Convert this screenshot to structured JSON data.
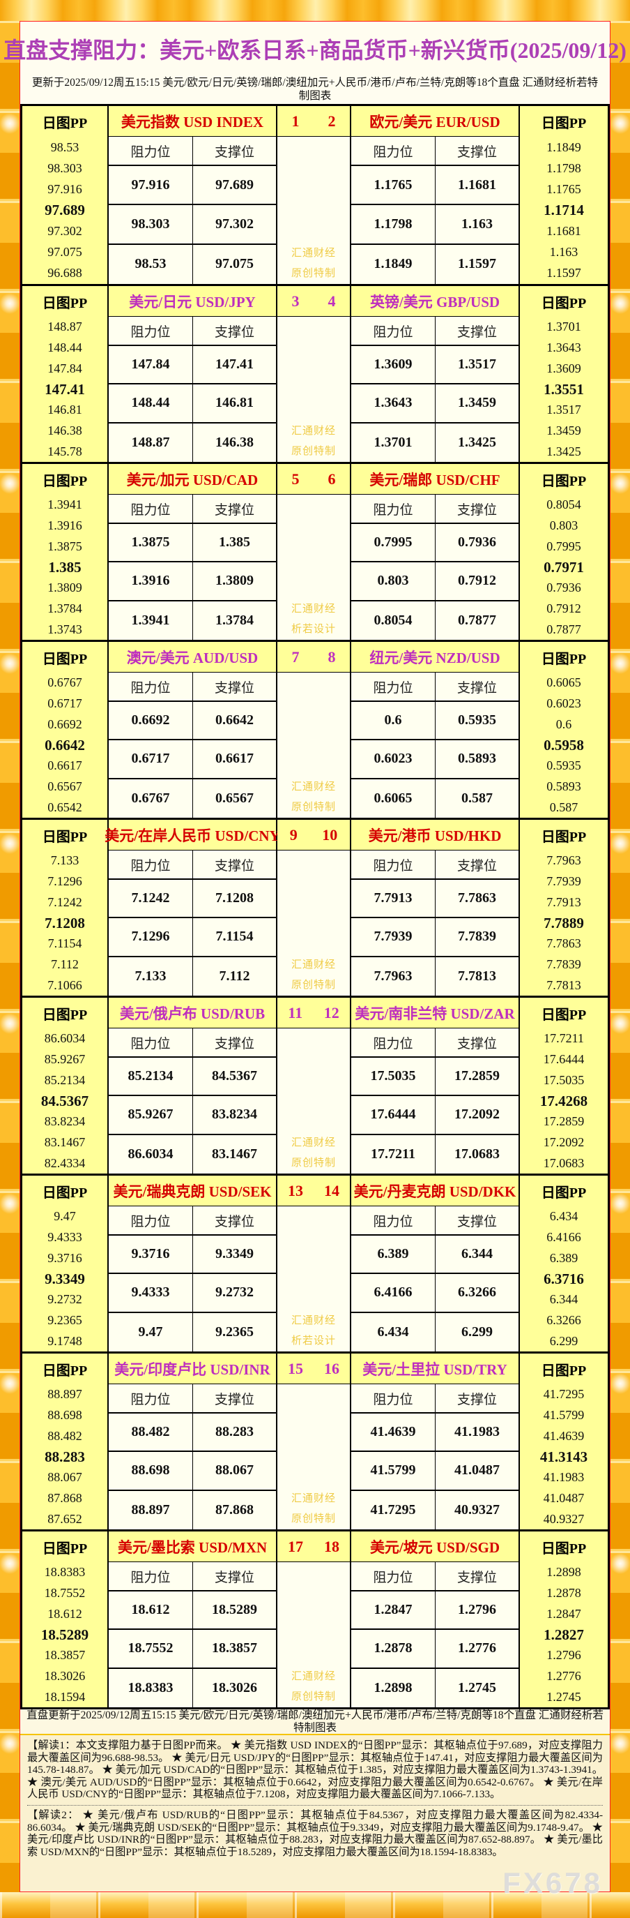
{
  "chart_data": {
    "type": "table",
    "title": "直盘支撑阻力：美元+欧系日系+商品货币+新兴货币(2025/09/12)",
    "subtitle": "更新于2025/09/12周五15:15 美元/欧元/日元/英镑/瑞郎/澳纽加元+人民币/港币/卢布/兰特/克朗等18个直盘 汇通财经析若特制图表",
    "footer_text": "直盘更新于2025/09/12周五15:15 美元/欧元/日元/英镑/瑞郎/澳纽加元+人民币/港币/卢布/兰特/克朗等18个直盘 汇通财经析若特制图表",
    "watermark": "FX678",
    "labels": {
      "pp_header": "日图PP",
      "resistance": "阻力位",
      "support": "支撑位"
    },
    "colors": {
      "red": "#D50000",
      "purple": "#BE2EBE",
      "header_bg": "#FFFF99",
      "cell_bg": "#FFFFF0",
      "gold_wm": "#EFCB45"
    },
    "blocks": [
      {
        "index_left": "1",
        "index_right": "2",
        "accent": "red",
        "watermark": [
          "汇通财经",
          "原创特制"
        ],
        "left": {
          "name": "美元指数 USD INDEX",
          "pp_values": [
            "98.53",
            "98.303",
            "97.916",
            "97.689",
            "97.302",
            "97.075",
            "96.688"
          ],
          "rows": [
            [
              "97.916",
              "97.689"
            ],
            [
              "98.303",
              "97.302"
            ],
            [
              "98.53",
              "97.075"
            ]
          ]
        },
        "right": {
          "name": "欧元/美元 EUR/USD",
          "pp_values": [
            "1.1849",
            "1.1798",
            "1.1765",
            "1.1714",
            "1.1681",
            "1.163",
            "1.1597"
          ],
          "rows": [
            [
              "1.1765",
              "1.1681"
            ],
            [
              "1.1798",
              "1.163"
            ],
            [
              "1.1849",
              "1.1597"
            ]
          ]
        }
      },
      {
        "index_left": "3",
        "index_right": "4",
        "accent": "purple",
        "watermark": [
          "汇通财经",
          "原创特制"
        ],
        "left": {
          "name": "美元/日元 USD/JPY",
          "pp_values": [
            "148.87",
            "148.44",
            "147.84",
            "147.41",
            "146.81",
            "146.38",
            "145.78"
          ],
          "rows": [
            [
              "147.84",
              "147.41"
            ],
            [
              "148.44",
              "146.81"
            ],
            [
              "148.87",
              "146.38"
            ]
          ]
        },
        "right": {
          "name": "英镑/美元 GBP/USD",
          "pp_values": [
            "1.3701",
            "1.3643",
            "1.3609",
            "1.3551",
            "1.3517",
            "1.3459",
            "1.3425"
          ],
          "rows": [
            [
              "1.3609",
              "1.3517"
            ],
            [
              "1.3643",
              "1.3459"
            ],
            [
              "1.3701",
              "1.3425"
            ]
          ]
        }
      },
      {
        "index_left": "5",
        "index_right": "6",
        "accent": "red",
        "watermark": [
          "汇通财经",
          "析若设计"
        ],
        "left": {
          "name": "美元/加元 USD/CAD",
          "pp_values": [
            "1.3941",
            "1.3916",
            "1.3875",
            "1.385",
            "1.3809",
            "1.3784",
            "1.3743"
          ],
          "rows": [
            [
              "1.3875",
              "1.385"
            ],
            [
              "1.3916",
              "1.3809"
            ],
            [
              "1.3941",
              "1.3784"
            ]
          ]
        },
        "right": {
          "name": "美元/瑞郎 USD/CHF",
          "pp_values": [
            "0.8054",
            "0.803",
            "0.7995",
            "0.7971",
            "0.7936",
            "0.7912",
            "0.7877"
          ],
          "rows": [
            [
              "0.7995",
              "0.7936"
            ],
            [
              "0.803",
              "0.7912"
            ],
            [
              "0.8054",
              "0.7877"
            ]
          ]
        }
      },
      {
        "index_left": "7",
        "index_right": "8",
        "accent": "purple",
        "watermark": [
          "汇通财经",
          "原创特制"
        ],
        "left": {
          "name": "澳元/美元 AUD/USD",
          "pp_values": [
            "0.6767",
            "0.6717",
            "0.6692",
            "0.6642",
            "0.6617",
            "0.6567",
            "0.6542"
          ],
          "rows": [
            [
              "0.6692",
              "0.6642"
            ],
            [
              "0.6717",
              "0.6617"
            ],
            [
              "0.6767",
              "0.6567"
            ]
          ]
        },
        "right": {
          "name": "纽元/美元 NZD/USD",
          "pp_values": [
            "0.6065",
            "0.6023",
            "0.6",
            "0.5958",
            "0.5935",
            "0.5893",
            "0.587"
          ],
          "rows": [
            [
              "0.6",
              "0.5935"
            ],
            [
              "0.6023",
              "0.5893"
            ],
            [
              "0.6065",
              "0.587"
            ]
          ]
        }
      },
      {
        "index_left": "9",
        "index_right": "10",
        "accent": "red",
        "watermark": [
          "汇通财经",
          "原创特制"
        ],
        "left": {
          "name": "美元/在岸人民币 USD/CNY",
          "pp_values": [
            "7.133",
            "7.1296",
            "7.1242",
            "7.1208",
            "7.1154",
            "7.112",
            "7.1066"
          ],
          "rows": [
            [
              "7.1242",
              "7.1208"
            ],
            [
              "7.1296",
              "7.1154"
            ],
            [
              "7.133",
              "7.112"
            ]
          ]
        },
        "right": {
          "name": "美元/港币 USD/HKD",
          "pp_values": [
            "7.7963",
            "7.7939",
            "7.7913",
            "7.7889",
            "7.7863",
            "7.7839",
            "7.7813"
          ],
          "rows": [
            [
              "7.7913",
              "7.7863"
            ],
            [
              "7.7939",
              "7.7839"
            ],
            [
              "7.7963",
              "7.7813"
            ]
          ]
        }
      },
      {
        "index_left": "11",
        "index_right": "12",
        "accent": "purple",
        "watermark": [
          "汇通财经",
          "原创特制"
        ],
        "left": {
          "name": "美元/俄卢布 USD/RUB",
          "pp_values": [
            "86.6034",
            "85.9267",
            "85.2134",
            "84.5367",
            "83.8234",
            "83.1467",
            "82.4334"
          ],
          "rows": [
            [
              "85.2134",
              "84.5367"
            ],
            [
              "85.9267",
              "83.8234"
            ],
            [
              "86.6034",
              "83.1467"
            ]
          ]
        },
        "right": {
          "name": "美元/南非兰特 USD/ZAR",
          "pp_values": [
            "17.7211",
            "17.6444",
            "17.5035",
            "17.4268",
            "17.2859",
            "17.2092",
            "17.0683"
          ],
          "rows": [
            [
              "17.5035",
              "17.2859"
            ],
            [
              "17.6444",
              "17.2092"
            ],
            [
              "17.7211",
              "17.0683"
            ]
          ]
        }
      },
      {
        "index_left": "13",
        "index_right": "14",
        "accent": "red",
        "watermark": [
          "汇通财经",
          "析若设计"
        ],
        "left": {
          "name": "美元/瑞典克朗 USD/SEK",
          "pp_values": [
            "9.47",
            "9.4333",
            "9.3716",
            "9.3349",
            "9.2732",
            "9.2365",
            "9.1748"
          ],
          "rows": [
            [
              "9.3716",
              "9.3349"
            ],
            [
              "9.4333",
              "9.2732"
            ],
            [
              "9.47",
              "9.2365"
            ]
          ]
        },
        "right": {
          "name": "美元/丹麦克朗 USD/DKK",
          "pp_values": [
            "6.434",
            "6.4166",
            "6.389",
            "6.3716",
            "6.344",
            "6.3266",
            "6.299"
          ],
          "rows": [
            [
              "6.389",
              "6.344"
            ],
            [
              "6.4166",
              "6.3266"
            ],
            [
              "6.434",
              "6.299"
            ]
          ]
        }
      },
      {
        "index_left": "15",
        "index_right": "16",
        "accent": "purple",
        "watermark": [
          "汇通财经",
          "原创特制"
        ],
        "left": {
          "name": "美元/印度卢比 USD/INR",
          "pp_values": [
            "88.897",
            "88.698",
            "88.482",
            "88.283",
            "88.067",
            "87.868",
            "87.652"
          ],
          "rows": [
            [
              "88.482",
              "88.283"
            ],
            [
              "88.698",
              "88.067"
            ],
            [
              "88.897",
              "87.868"
            ]
          ]
        },
        "right": {
          "name": "美元/土里拉 USD/TRY",
          "pp_values": [
            "41.7295",
            "41.5799",
            "41.4639",
            "41.3143",
            "41.1983",
            "41.0487",
            "40.9327"
          ],
          "rows": [
            [
              "41.4639",
              "41.1983"
            ],
            [
              "41.5799",
              "41.0487"
            ],
            [
              "41.7295",
              "40.9327"
            ]
          ]
        }
      },
      {
        "index_left": "17",
        "index_right": "18",
        "accent": "red",
        "watermark": [
          "汇通财经",
          "原创特制"
        ],
        "left": {
          "name": "美元/墨比索 USD/MXN",
          "pp_values": [
            "18.8383",
            "18.7552",
            "18.612",
            "18.5289",
            "18.3857",
            "18.3026",
            "18.1594"
          ],
          "rows": [
            [
              "18.612",
              "18.5289"
            ],
            [
              "18.7552",
              "18.3857"
            ],
            [
              "18.8383",
              "18.3026"
            ]
          ]
        },
        "right": {
          "name": "美元/坡元 USD/SGD",
          "pp_values": [
            "1.2898",
            "1.2878",
            "1.2847",
            "1.2827",
            "1.2796",
            "1.2776",
            "1.2745"
          ],
          "rows": [
            [
              "1.2847",
              "1.2796"
            ],
            [
              "1.2878",
              "1.2776"
            ],
            [
              "1.2898",
              "1.2745"
            ]
          ]
        }
      }
    ],
    "notes": {
      "note1": "【解读1：本文支撑阻力基于日图PP而来。 ★ 美元指数 USD INDEX的“日图PP”显示：其枢轴点位于97.689，对应支撑阻力最大覆盖区间为96.688-98.53。 ★ 美元/日元 USD/JPY的“日图PP”显示：其枢轴点位于147.41，对应支撑阻力最大覆盖区间为145.78-148.87。 ★ 美元/加元 USD/CAD的“日图PP”显示：其枢轴点位于1.385，对应支撑阻力最大覆盖区间为1.3743-1.3941。 ★ 澳元/美元 AUD/USD的“日图PP”显示：其枢轴点位于0.6642，对应支撑阻力最大覆盖区间为0.6542-0.6767。 ★ 美元/在岸人民币 USD/CNY的“日图PP”显示：其枢轴点位于7.1208，对应支撑阻力最大覆盖区间为7.1066-7.133。",
      "note2": "【解读2： ★ 美元/俄卢布 USD/RUB的“日图PP”显示：其枢轴点位于84.5367，对应支撑阻力最大覆盖区间为82.4334-86.6034。 ★ 美元/瑞典克朗 USD/SEK的“日图PP”显示：其枢轴点位于9.3349，对应支撑阻力最大覆盖区间为9.1748-9.47。 ★ 美元/印度卢比 USD/INR的“日图PP”显示：其枢轴点位于88.283，对应支撑阻力最大覆盖区间为87.652-88.897。 ★ 美元/墨比索 USD/MXN的“日图PP”显示：其枢轴点位于18.5289，对应支撑阻力最大覆盖区间为18.1594-18.8383。"
    }
  }
}
